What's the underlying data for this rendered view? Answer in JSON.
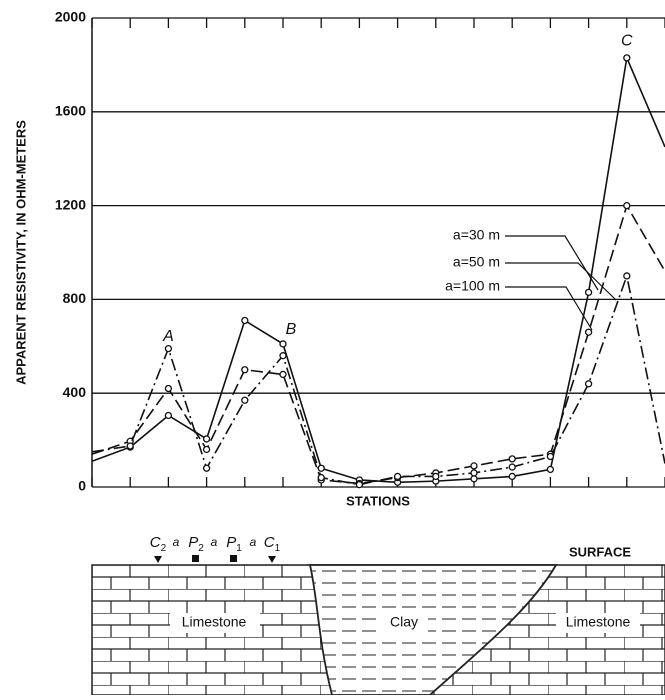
{
  "chart_data": {
    "type": "line",
    "y_label": "APPARENT RESISTIVITY, IN OHM-METERS",
    "x_label": "STATIONS",
    "x": [
      0,
      1,
      2,
      3,
      4,
      5,
      6,
      7,
      8,
      9,
      10,
      11,
      12,
      13,
      14,
      15
    ],
    "xlim": [
      0,
      15
    ],
    "xticks": [
      0,
      1,
      2,
      3,
      4,
      5,
      6,
      7,
      8,
      9,
      10,
      11,
      12,
      13,
      14,
      15
    ],
    "ylim": [
      0,
      2000
    ],
    "yticks": [
      0,
      400,
      800,
      1200,
      1600,
      2000
    ],
    "grid": true,
    "series": [
      {
        "name": "a=30 m",
        "color": "#111111",
        "dash": "none",
        "values": [
          110,
          170,
          305,
          205,
          710,
          610,
          80,
          30,
          20,
          25,
          35,
          45,
          75,
          830,
          1830,
          1450
        ]
      },
      {
        "name": "a=50 m",
        "color": "#111111",
        "dash": "12,5",
        "values": [
          140,
          195,
          420,
          160,
          500,
          480,
          30,
          15,
          40,
          60,
          90,
          120,
          140,
          660,
          1200,
          920
        ]
      },
      {
        "name": "a=100 m",
        "color": "#111111",
        "dash": "12,4,2,4",
        "values": [
          150,
          175,
          590,
          80,
          370,
          560,
          40,
          10,
          45,
          45,
          60,
          85,
          130,
          440,
          900,
          100
        ]
      }
    ],
    "annotations": [
      {
        "text": "A",
        "x": 2,
        "y": 640
      },
      {
        "text": "B",
        "x": 5,
        "y": 670
      },
      {
        "text": "C",
        "x": 14,
        "y": 1900
      }
    ]
  },
  "diagram": {
    "electrodes": [
      {
        "main": "C",
        "sub": "2"
      },
      {
        "main": "a",
        "sub": ""
      },
      {
        "main": "P",
        "sub": "2"
      },
      {
        "main": "a",
        "sub": ""
      },
      {
        "main": "P",
        "sub": "1"
      },
      {
        "main": "a",
        "sub": ""
      },
      {
        "main": "C",
        "sub": "1"
      }
    ],
    "surface": "SURFACE",
    "layers": [
      "Limestone",
      "Clay",
      "Limestone"
    ]
  }
}
